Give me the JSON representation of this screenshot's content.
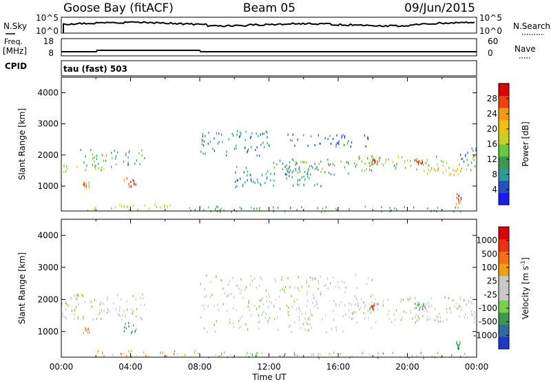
{
  "header": {
    "station": "Goose Bay (fitACF)",
    "beam": "Beam 05",
    "date": "09/Jun/2015"
  },
  "noise_panel": {
    "left_label": "N.Sky",
    "right_label": "N.Search",
    "left_ticks": [
      "10^5",
      "10^0"
    ],
    "right_ticks": [
      "10^5",
      "10^0"
    ]
  },
  "freq_panel": {
    "left_label": "Freq.",
    "left_unit": "[MHz]",
    "right_label": "Nave",
    "left_ticks": [
      "18",
      "8"
    ],
    "right_ticks": [
      "60",
      "0"
    ]
  },
  "cpid_panel": {
    "label": "CPID",
    "text": "tau (fast) 503"
  },
  "chart_data": [
    {
      "type": "heatmap",
      "name": "power",
      "ylabel": "Slant Range [km]",
      "yticks": [
        1000,
        2000,
        3000,
        4000
      ],
      "ylim": [
        200,
        4500
      ],
      "xlim": [
        0,
        24
      ],
      "colorbar": {
        "label": "Power [dB]",
        "ticks": [
          "4",
          "8",
          "12",
          "16",
          "20",
          "24",
          "28"
        ],
        "colors": [
          "#1a1aff",
          "#2650c0",
          "#2f9a9a",
          "#3a9a52",
          "#6ac83a",
          "#c8d020",
          "#f0c010",
          "#f59a10",
          "#f04010",
          "#e00000"
        ]
      },
      "regions": [
        {
          "t0": 0.0,
          "t1": 2.5,
          "r0": 1450,
          "r1": 1700,
          "level": 4
        },
        {
          "t0": 1.0,
          "t1": 4.8,
          "r0": 1650,
          "r1": 2200,
          "level": 3
        },
        {
          "t0": 1.2,
          "t1": 1.6,
          "r0": 950,
          "r1": 1150,
          "level": 7
        },
        {
          "t0": 3.6,
          "t1": 4.3,
          "r0": 950,
          "r1": 1300,
          "level": 8
        },
        {
          "t0": 1.5,
          "t1": 7.0,
          "r0": 250,
          "r1": 450,
          "level": 5
        },
        {
          "t0": 7.0,
          "t1": 24.0,
          "r0": 200,
          "r1": 380,
          "level": 3
        },
        {
          "t0": 8.0,
          "t1": 12.0,
          "r0": 2000,
          "r1": 2800,
          "level": 2
        },
        {
          "t0": 10.0,
          "t1": 15.0,
          "r0": 1000,
          "r1": 1700,
          "level": 2
        },
        {
          "t0": 12.0,
          "t1": 18.0,
          "r0": 1400,
          "r1": 1900,
          "level": 3
        },
        {
          "t0": 13.0,
          "t1": 18.0,
          "r0": 2300,
          "r1": 2700,
          "level": 1
        },
        {
          "t0": 17.0,
          "t1": 24.0,
          "r0": 1500,
          "r1": 2000,
          "level": 4
        },
        {
          "t0": 17.8,
          "t1": 18.3,
          "r0": 1700,
          "r1": 1900,
          "level": 8
        },
        {
          "t0": 20.4,
          "t1": 21.0,
          "r0": 1700,
          "r1": 1900,
          "level": 8
        },
        {
          "t0": 21.0,
          "t1": 23.5,
          "r0": 1350,
          "r1": 1650,
          "level": 6
        },
        {
          "t0": 22.8,
          "t1": 23.1,
          "r0": 450,
          "r1": 800,
          "level": 8
        },
        {
          "t0": 23.0,
          "t1": 24.0,
          "r0": 1700,
          "r1": 2300,
          "level": 2
        }
      ]
    },
    {
      "type": "heatmap",
      "name": "velocity",
      "ylabel": "Slant Range [km]",
      "yticks": [
        1000,
        2000,
        3000,
        4000
      ],
      "ylim": [
        200,
        4500
      ],
      "xlim": [
        0,
        24
      ],
      "xlabel": "Time UT",
      "xticks": [
        "00:00",
        "04:00",
        "08:00",
        "12:00",
        "16:00",
        "20:00",
        "00:00"
      ],
      "colorbar": {
        "label": "Velocity [m s^-1]",
        "ticks": [
          "1000",
          "500",
          "100",
          "25",
          "-25",
          "-100",
          "-500",
          "-1000"
        ],
        "colors": [
          "#1a3acc",
          "#2f6aa0",
          "#3a9a52",
          "#7ad04a",
          "#c8c8c8",
          "#c8c8c8",
          "#f0a010",
          "#f57010",
          "#f03010",
          "#e00000"
        ]
      },
      "regions": [
        {
          "t0": 0.0,
          "t1": 4.8,
          "r0": 1400,
          "r1": 2200,
          "level": 4
        },
        {
          "t0": 1.2,
          "t1": 1.6,
          "r0": 950,
          "r1": 1150,
          "level": 6
        },
        {
          "t0": 3.6,
          "t1": 4.3,
          "r0": 950,
          "r1": 1300,
          "level": 2
        },
        {
          "t0": 1.5,
          "t1": 8.0,
          "r0": 250,
          "r1": 450,
          "level": 6
        },
        {
          "t0": 8.0,
          "t1": 24.0,
          "r0": 200,
          "r1": 380,
          "level": 3
        },
        {
          "t0": 8.0,
          "t1": 18.0,
          "r0": 1000,
          "r1": 2800,
          "level": 4
        },
        {
          "t0": 17.8,
          "t1": 18.3,
          "r0": 1700,
          "r1": 1900,
          "level": 8
        },
        {
          "t0": 18.0,
          "t1": 24.0,
          "r0": 1300,
          "r1": 2100,
          "level": 4
        },
        {
          "t0": 20.4,
          "t1": 21.0,
          "r0": 1700,
          "r1": 1900,
          "level": 2
        },
        {
          "t0": 22.8,
          "t1": 23.1,
          "r0": 450,
          "r1": 800,
          "level": 2
        }
      ]
    }
  ]
}
